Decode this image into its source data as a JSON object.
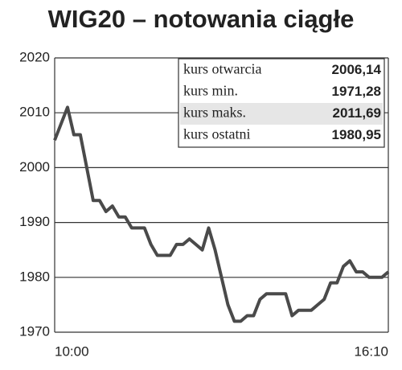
{
  "chart_data": {
    "type": "line",
    "title": "WIG20 – notowania ciągłe",
    "categories": [
      "10:00",
      null,
      null,
      null,
      null,
      null,
      null,
      null,
      null,
      null,
      null,
      null,
      null,
      null,
      null,
      null,
      null,
      null,
      null,
      null,
      null,
      null,
      null,
      null,
      null,
      null,
      null,
      null,
      null,
      null,
      null,
      null,
      null,
      null,
      null,
      null,
      null,
      null,
      null,
      null,
      null,
      null,
      null,
      null,
      null,
      null,
      null,
      null,
      null,
      null,
      null,
      null,
      "16:10"
    ],
    "values": [
      2005,
      2008,
      2011,
      2006,
      2006,
      2000,
      1994,
      1994,
      1992,
      1993,
      1991,
      1991,
      1989,
      1989,
      1989,
      1986,
      1984,
      1984,
      1984,
      1986,
      1986,
      1987,
      1986,
      1985,
      1989,
      1985,
      1980,
      1975,
      1972,
      1972,
      1973,
      1973,
      1976,
      1977,
      1977,
      1977,
      1977,
      1973,
      1974,
      1974,
      1974,
      1975,
      1976,
      1979,
      1979,
      1982,
      1983,
      1981,
      1981,
      1980,
      1980,
      1980,
      1981
    ],
    "color": "#4a4a4a",
    "ylim": [
      1970,
      2020
    ],
    "yticks": [
      1970,
      1980,
      1990,
      2000,
      2010,
      2020
    ],
    "grid": true,
    "annotations": [
      {
        "label": "kurs otwarcia",
        "value": "2006,14"
      },
      {
        "label": "kurs min.",
        "value": "1971,28"
      },
      {
        "label": "kurs maks.",
        "value": "2011,69"
      },
      {
        "label": "kurs ostatni",
        "value": "1980,95"
      }
    ]
  }
}
